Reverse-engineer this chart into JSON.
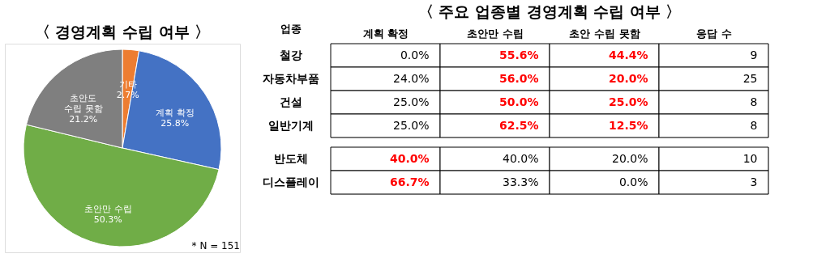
{
  "chart_data": [
    {
      "type": "pie",
      "title": "〈 경영계획 수립 여부 〉",
      "categories": [
        "기타",
        "계획 확정",
        "초안만 수립",
        "초안도\n수립 못함"
      ],
      "values": [
        2.7,
        25.8,
        50.3,
        21.2
      ],
      "colors": [
        "#ed7d31",
        "#4472c4",
        "#70ad47",
        "#7f7f7f"
      ],
      "value_labels": [
        "2.7%",
        "25.8%",
        "50.3%",
        "21.2%"
      ],
      "annotations": [
        "* N = 151"
      ],
      "legend": false
    },
    {
      "type": "other",
      "title": "〈 주요 업종별 경영계획 수립 여부 〉",
      "ylabel": "업종",
      "categories": [
        "계획 확정",
        "초안만 수립",
        "초안 수립 못함",
        "응답 수"
      ],
      "y_categories": [
        "철강",
        "자동차부품",
        "건설",
        "일반기계"
      ],
      "cell_labels": [
        [
          "0.0%",
          "55.6%",
          "44.4%",
          "9"
        ],
        [
          "24.0%",
          "56.0%",
          "20.0%",
          "25"
        ],
        [
          "25.0%",
          "50.0%",
          "25.0%",
          "8"
        ],
        [
          "25.0%",
          "62.5%",
          "12.5%",
          "8"
        ]
      ],
      "colors": [
        [
          "#000000",
          "#ff0000",
          "#ff0000",
          "#000000"
        ],
        [
          "#000000",
          "#ff0000",
          "#ff0000",
          "#000000"
        ],
        [
          "#000000",
          "#ff0000",
          "#ff0000",
          "#000000"
        ],
        [
          "#000000",
          "#ff0000",
          "#ff0000",
          "#000000"
        ]
      ]
    },
    {
      "type": "other",
      "y_categories": [
        "반도체",
        "디스플레이"
      ],
      "cell_labels": [
        [
          "40.0%",
          "40.0%",
          "20.0%",
          "10"
        ],
        [
          "66.7%",
          "33.3%",
          "0.0%",
          "3"
        ]
      ],
      "colors": [
        [
          "#ff0000",
          "#000000",
          "#000000",
          "#000000"
        ],
        [
          "#ff0000",
          "#000000",
          "#000000",
          "#000000"
        ]
      ]
    }
  ]
}
